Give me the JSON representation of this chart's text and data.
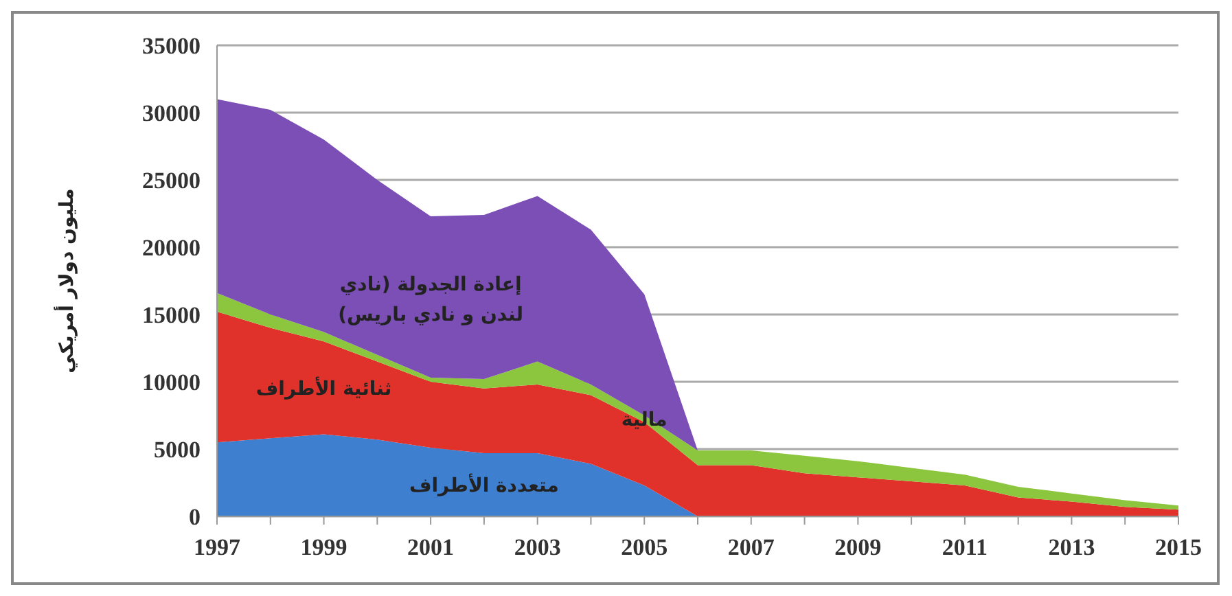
{
  "chart_data": {
    "type": "area",
    "stacked": true,
    "ylabel": "مليون دولار أمريكي",
    "x": [
      1997,
      1998,
      1999,
      2000,
      2001,
      2002,
      2003,
      2004,
      2005,
      2006,
      2007,
      2008,
      2009,
      2010,
      2011,
      2012,
      2013,
      2014,
      2015
    ],
    "xlim": [
      1997,
      2015
    ],
    "xticks": [
      1997,
      1999,
      2001,
      2003,
      2005,
      2007,
      2009,
      2011,
      2013,
      2015
    ],
    "ylim": [
      0,
      35000
    ],
    "yticks": [
      0,
      5000,
      10000,
      15000,
      20000,
      25000,
      30000,
      35000
    ],
    "grid": "y",
    "series": [
      {
        "name": "متعددة الأطراف",
        "color": "#3f7fd0",
        "values": [
          5500,
          5800,
          6100,
          5700,
          5100,
          4700,
          4700,
          3900,
          2300,
          0,
          0,
          0,
          0,
          0,
          0,
          0,
          0,
          0,
          0
        ]
      },
      {
        "name": "ثنائية الأطراف",
        "color": "#e0322b",
        "values": [
          9700,
          8200,
          6900,
          5800,
          4900,
          4800,
          5100,
          5100,
          4700,
          3800,
          3800,
          3200,
          2900,
          2600,
          2300,
          1400,
          1100,
          700,
          500
        ]
      },
      {
        "name": "مالية",
        "color": "#8cc63f",
        "values": [
          1400,
          1000,
          700,
          500,
          300,
          700,
          1700,
          800,
          500,
          1100,
          1100,
          1300,
          1200,
          1000,
          800,
          800,
          600,
          500,
          300
        ]
      },
      {
        "name": "إعادة الجدولة (نادي لندن و نادي باريس)",
        "color": "#7b4fb5",
        "values": [
          14400,
          15200,
          14300,
          13000,
          12000,
          12200,
          12300,
          11500,
          9000,
          0,
          0,
          0,
          0,
          0,
          0,
          0,
          0,
          0,
          0
        ]
      }
    ]
  }
}
